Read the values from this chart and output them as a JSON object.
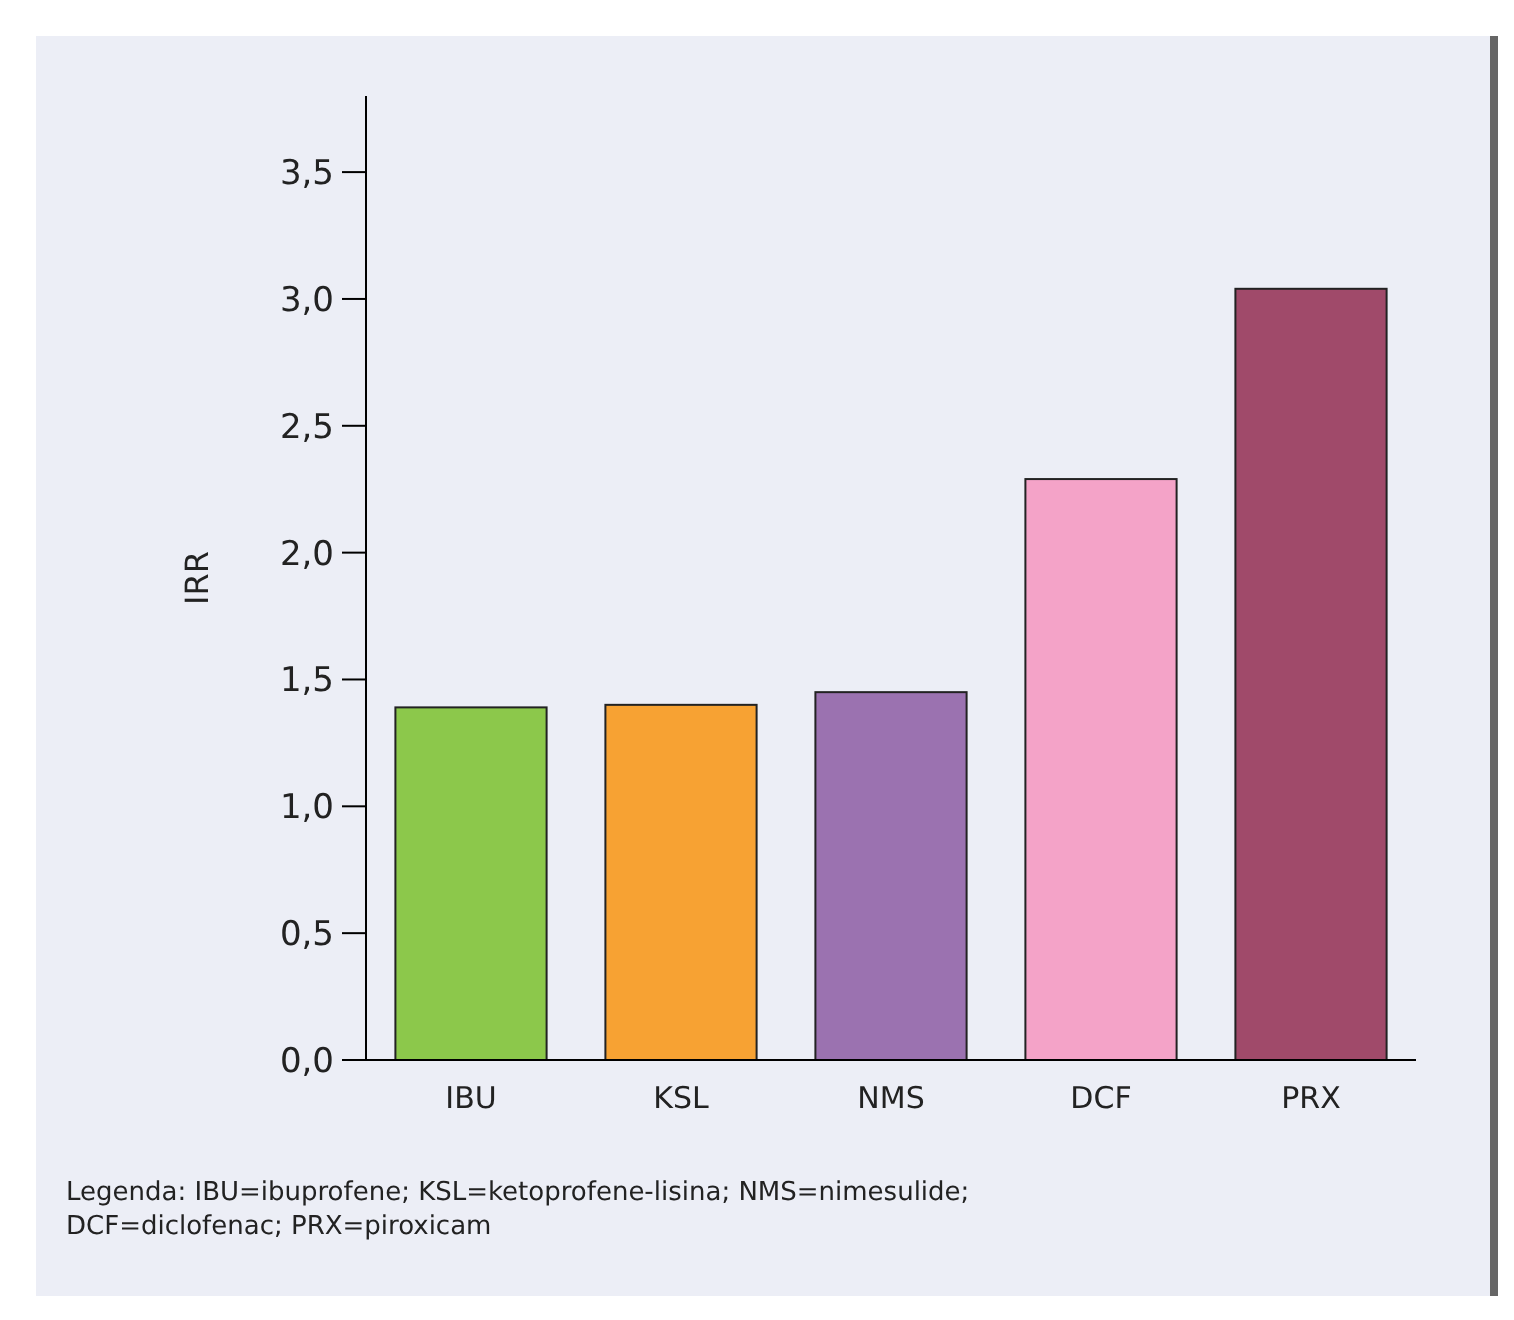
{
  "chart_data": {
    "type": "bar",
    "ylabel": "IRR",
    "categories": [
      "IBU",
      "KSL",
      "NMS",
      "DCF",
      "PRX"
    ],
    "values": [
      1.39,
      1.4,
      1.45,
      2.29,
      3.04
    ],
    "colors": [
      "#8cc84b",
      "#f7a233",
      "#9b72b0",
      "#f4a3c8",
      "#a04a6a"
    ],
    "ylim": [
      0,
      3.8
    ],
    "yticks": [
      {
        "value": 0,
        "label": "0,0"
      },
      {
        "value": 0.5,
        "label": "0,5"
      },
      {
        "value": 1,
        "label": "1,0"
      },
      {
        "value": 1.5,
        "label": "1,5"
      },
      {
        "value": 2,
        "label": "2,0"
      },
      {
        "value": 2.5,
        "label": "2,5"
      },
      {
        "value": 3,
        "label": "3,0"
      },
      {
        "value": 3.5,
        "label": "3,5"
      }
    ],
    "grid": false,
    "annotations": [
      "Legenda: IBU=ibuprofene; KSL=ketoprofene-lisina; NMS=nimesulide;",
      "DCF=diclofenac; PRX=piroxicam"
    ]
  }
}
